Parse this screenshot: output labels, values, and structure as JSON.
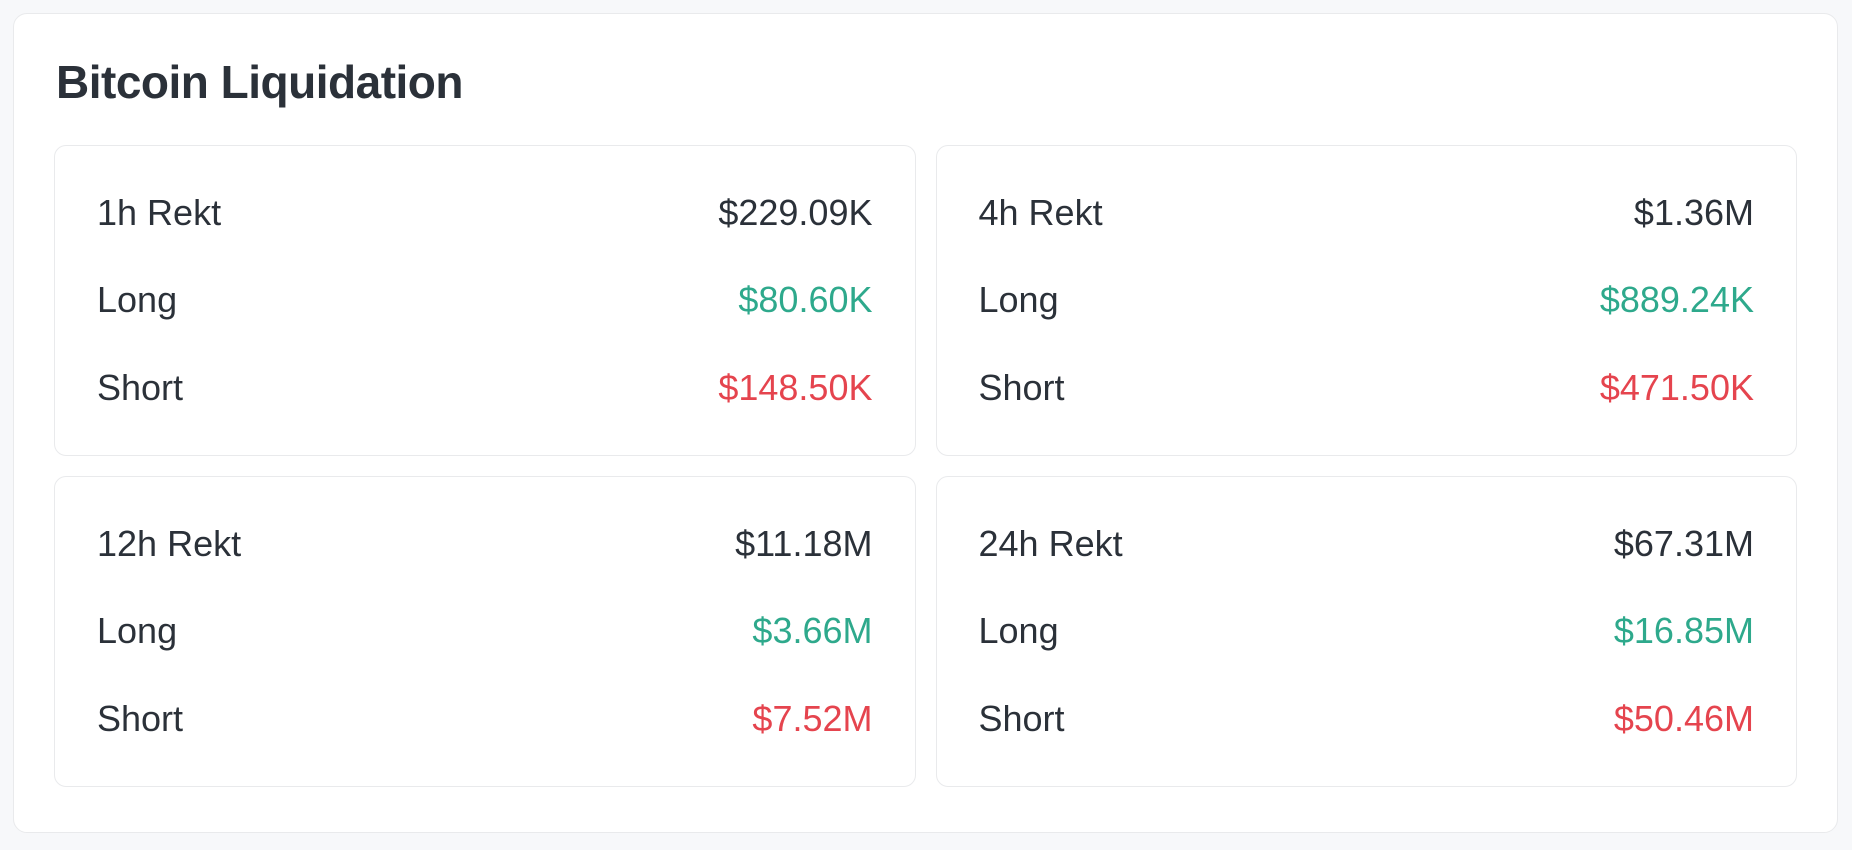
{
  "widget": {
    "title": "Bitcoin Liquidation"
  },
  "colors": {
    "bg": "#f7f8fa",
    "panel-bg": "#ffffff",
    "border": "#e9eaec",
    "text": "#2b3139",
    "long": "#2ea98c",
    "short": "#e5444e"
  },
  "cards": [
    {
      "period": "1h Rekt",
      "total": "$229.09K",
      "long_label": "Long",
      "long_value": "$80.60K",
      "short_label": "Short",
      "short_value": "$148.50K"
    },
    {
      "period": "4h Rekt",
      "total": "$1.36M",
      "long_label": "Long",
      "long_value": "$889.24K",
      "short_label": "Short",
      "short_value": "$471.50K"
    },
    {
      "period": "12h Rekt",
      "total": "$11.18M",
      "long_label": "Long",
      "long_value": "$3.66M",
      "short_label": "Short",
      "short_value": "$7.52M"
    },
    {
      "period": "24h Rekt",
      "total": "$67.31M",
      "long_label": "Long",
      "long_value": "$16.85M",
      "short_label": "Short",
      "short_value": "$50.46M"
    }
  ]
}
